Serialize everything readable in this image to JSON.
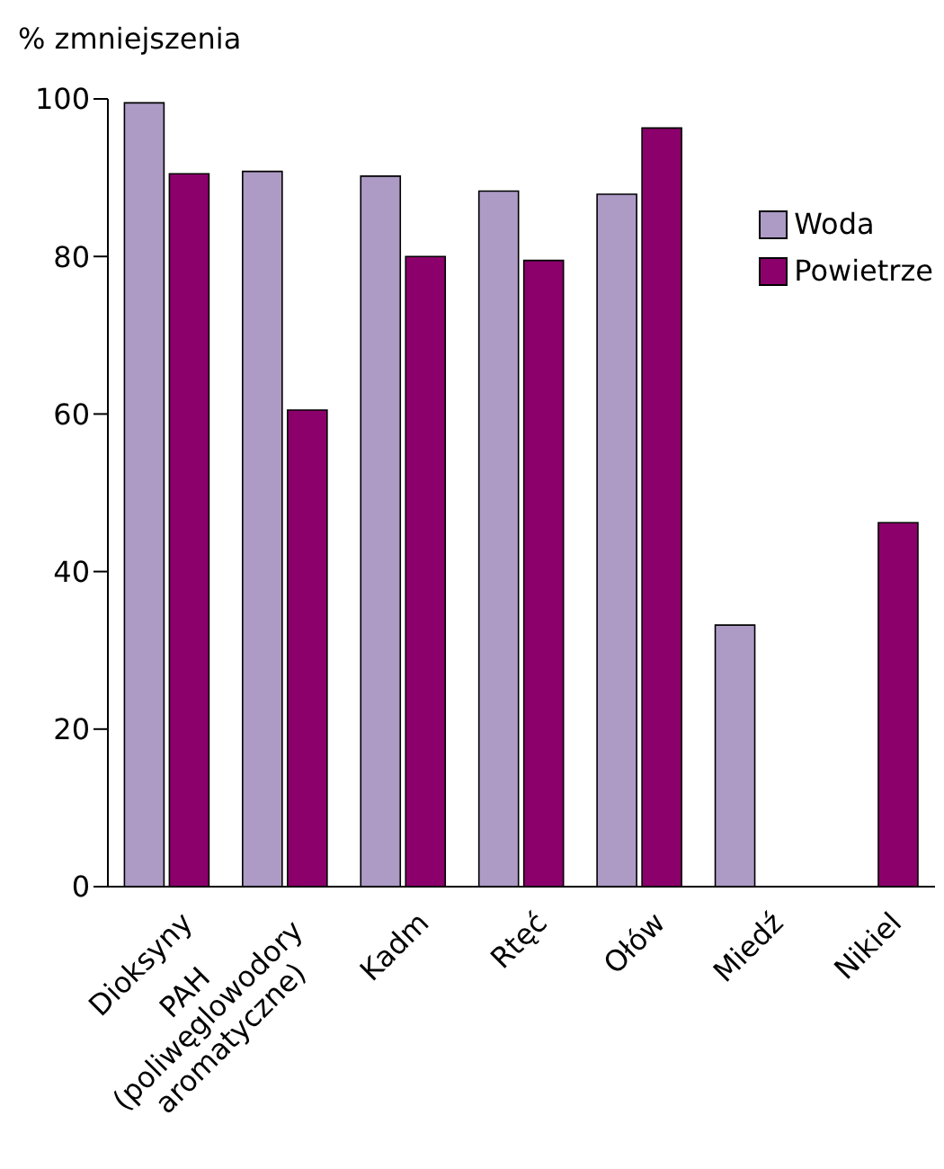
{
  "chart_data": {
    "type": "bar",
    "ylabel": "% zmniejszenia",
    "categories": [
      "Dioksyny",
      "PAH\n(poliwęglowodory\naromatyczne)",
      "Kadm",
      "Rtęć",
      "Ołów",
      "Miedź",
      "Nikiel"
    ],
    "series": [
      {
        "name": "Woda",
        "color": "#ad9bc6",
        "values": [
          99.5,
          90.8,
          90.2,
          88.3,
          87.9,
          33.2,
          null
        ]
      },
      {
        "name": "Powietrze",
        "color": "#8c006b",
        "values": [
          90.5,
          60.5,
          80,
          79.5,
          96.3,
          null,
          46.2
        ]
      }
    ],
    "ylim": [
      0,
      100
    ],
    "yticks": [
      0,
      20,
      40,
      60,
      80,
      100
    ],
    "grid": false,
    "legend": "top right"
  }
}
